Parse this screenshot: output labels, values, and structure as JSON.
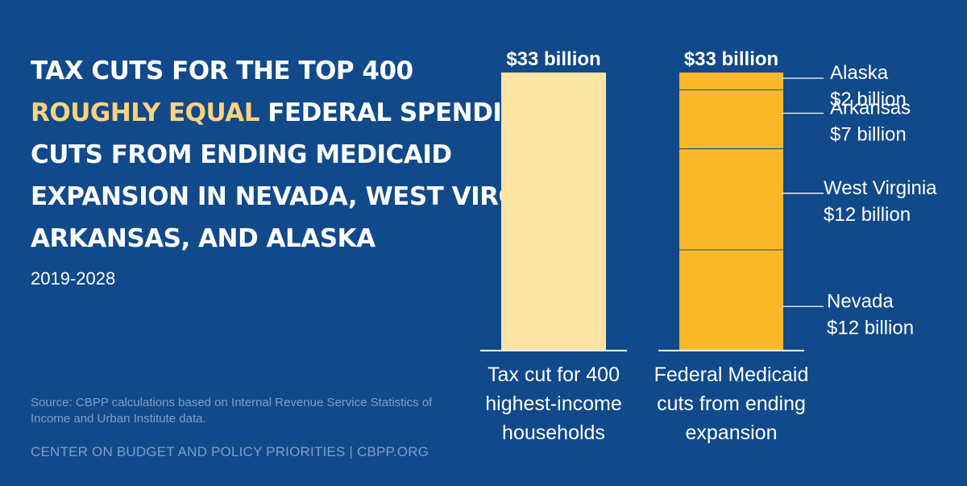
{
  "headline": {
    "line1": "Tax cuts for the top 400",
    "line2_accent": "roughly equal",
    "line2_rest": " federal spending",
    "line3": "cuts from ending Medicaid",
    "line4": "expansion in Nevada, West Virginia,",
    "line5": "Arkansas, and Alaska"
  },
  "years": "2019-2028",
  "source": "Source: CBPP calculations based on Internal Revenue Service Statistics of Income and Urban Institute data.",
  "footer": "CENTER ON BUDGET AND POLICY PRIORITIES | CBPP.ORG",
  "colors": {
    "background": "#11498a",
    "tax_bar": "#fde4a2",
    "medicaid_bar": "#fbb829",
    "accent_text": "#fdd27c",
    "muted_text": "#7f9fc7"
  },
  "chart_data": {
    "type": "bar",
    "stacked": true,
    "units": "billion dollars",
    "ylim": [
      0,
      33
    ],
    "categories": [
      {
        "label_lines": [
          "Tax cut for 400",
          "highest-income",
          "households"
        ],
        "total_label": "$33 billion",
        "segments": [
          {
            "name": "Tax cut",
            "value": 33
          }
        ]
      },
      {
        "label_lines": [
          "Federal Medicaid",
          "cuts from ending",
          "expansion"
        ],
        "total_label": "$33 billion",
        "segments": [
          {
            "name": "Nevada",
            "value": 12,
            "label_line1": "Nevada",
            "label_line2": "$12 billion"
          },
          {
            "name": "West Virginia",
            "value": 12,
            "label_line1": "West Virginia",
            "label_line2": "$12 billion"
          },
          {
            "name": "Arkansas",
            "value": 7,
            "label_line1": "Arkansas",
            "label_line2": "$7 billion"
          },
          {
            "name": "Alaska",
            "value": 2,
            "label_line1": "Alaska",
            "label_line2": "$2 billion"
          }
        ]
      }
    ]
  }
}
